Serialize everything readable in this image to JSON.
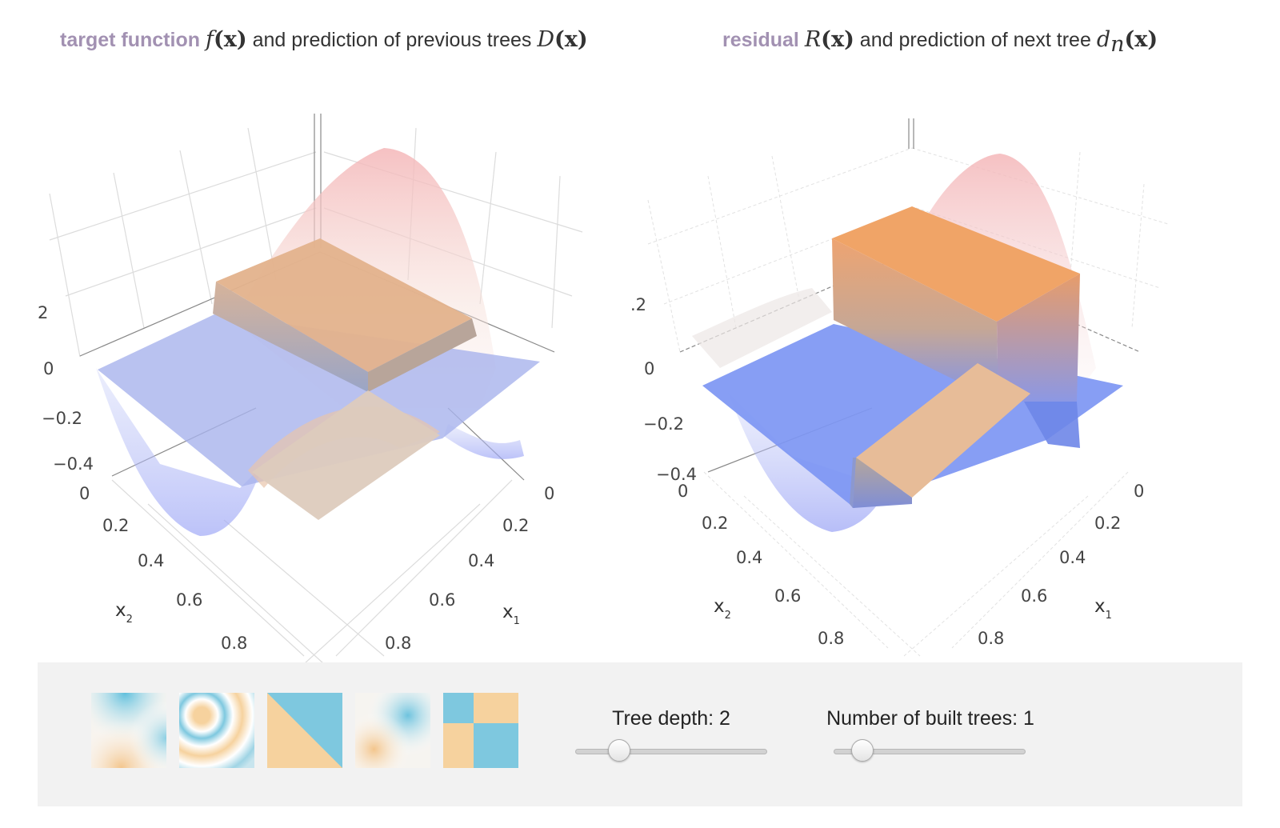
{
  "left_title": {
    "highlight": "target function",
    "f": "f",
    "x": "x",
    "middle": " and prediction of previous trees ",
    "D": "D",
    "paren_open": "(",
    "paren_close": ")"
  },
  "right_title": {
    "highlight": "residual",
    "R": "R",
    "x": "x",
    "middle": " and prediction of next tree ",
    "d": "d",
    "n": "n",
    "paren_open": "(",
    "paren_close": ")"
  },
  "left_plot": {
    "z_ticks": [
      "2",
      "0",
      "−0.2",
      "−0.4"
    ],
    "x2_ticks": [
      "0",
      "0.2",
      "0.4",
      "0.6",
      "0.8"
    ],
    "x1_ticks": [
      "0",
      "0.2",
      "0.4",
      "0.6",
      "0.8"
    ],
    "x2_label": "x",
    "x2_sub": "2",
    "x1_label": "x",
    "x1_sub": "1"
  },
  "right_plot": {
    "z_ticks": [
      ".2",
      "0",
      "−0.2",
      "−0.4"
    ],
    "x2_ticks": [
      "0",
      "0.2",
      "0.4",
      "0.6",
      "0.8"
    ],
    "x1_ticks": [
      "0",
      "0.2",
      "0.4",
      "0.6",
      "0.8"
    ],
    "x2_label": "x",
    "x2_sub": "2",
    "x1_label": "x",
    "x1_sub": "1"
  },
  "controls": {
    "presets": [
      "radial-corners",
      "concentric-rings",
      "diagonal-split",
      "diagonal-blob",
      "checkerboard"
    ],
    "tree_depth": {
      "label": "Tree depth: 2",
      "fraction": 0.23
    },
    "num_trees": {
      "label": "Number of built trees: 1",
      "fraction": 0.15
    }
  },
  "colors": {
    "accent": "#a291b2",
    "blue": "#7c93f0",
    "orange": "#f3a66f",
    "peach": "#e6c4a8",
    "pink": "#f2bcc0",
    "thumb_blue": "#7ec8df",
    "thumb_orange": "#f6d29e",
    "panel": "#f2f2f2"
  }
}
